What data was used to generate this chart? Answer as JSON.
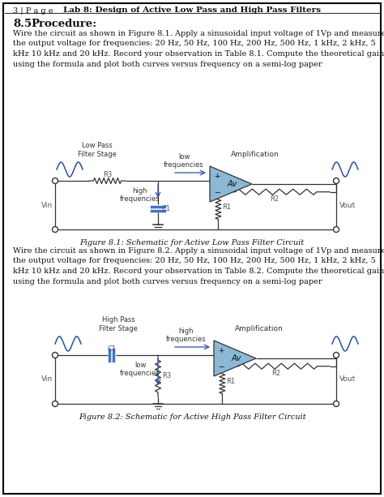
{
  "page_bg": "#ffffff",
  "header_text": "Lab 8: Design of Active Low Pass and High Pass Filters",
  "header_page": "3 | P a g e",
  "fig1_caption": "Figure 8.1: Schematic for Active Low Pass Filter Circuit",
  "fig2_caption": "Figure 8.2: Schematic for Active High Pass Filter Circuit",
  "opamp_fill": "#8bb8d4",
  "cap_color": "#4472c4",
  "wire_color": "#000000",
  "signal_color": "#2b4fa0",
  "arrow_color": "#2b4fa0",
  "text_color": "#222222",
  "label_color": "#555555",
  "para1_lines": [
    "Wire the circuit as shown in Figure 8.1. Apply a sinusoidal input voltage of 1Vp and measure",
    "the output voltage for frequencies: 20 Hz, 50 Hz, 100 Hz, 200 Hz, 500 Hz, 1 kHz, 2 kHz, 5",
    "kHz 10 kHz and 20 kHz. Record your observation in Table 8.1. Compute the theoretical gain",
    "using the formula and plot both curves versus frequency on a semi-log paper"
  ],
  "para2_lines": [
    "Wire the circuit as shown in Figure 8.2. Apply a sinusoidal input voltage of 1Vp and measure",
    "the output voltage for frequencies: 20 Hz, 50 Hz, 100 Hz, 200 Hz, 500 Hz, 1 kHz, 2 kHz, 5",
    "kHz 10 kHz and 20 kHz. Record your observation in Table 8.2. Compute the theoretical gain",
    "using the formula and plot both curves versus frequency on a semi-log paper"
  ]
}
